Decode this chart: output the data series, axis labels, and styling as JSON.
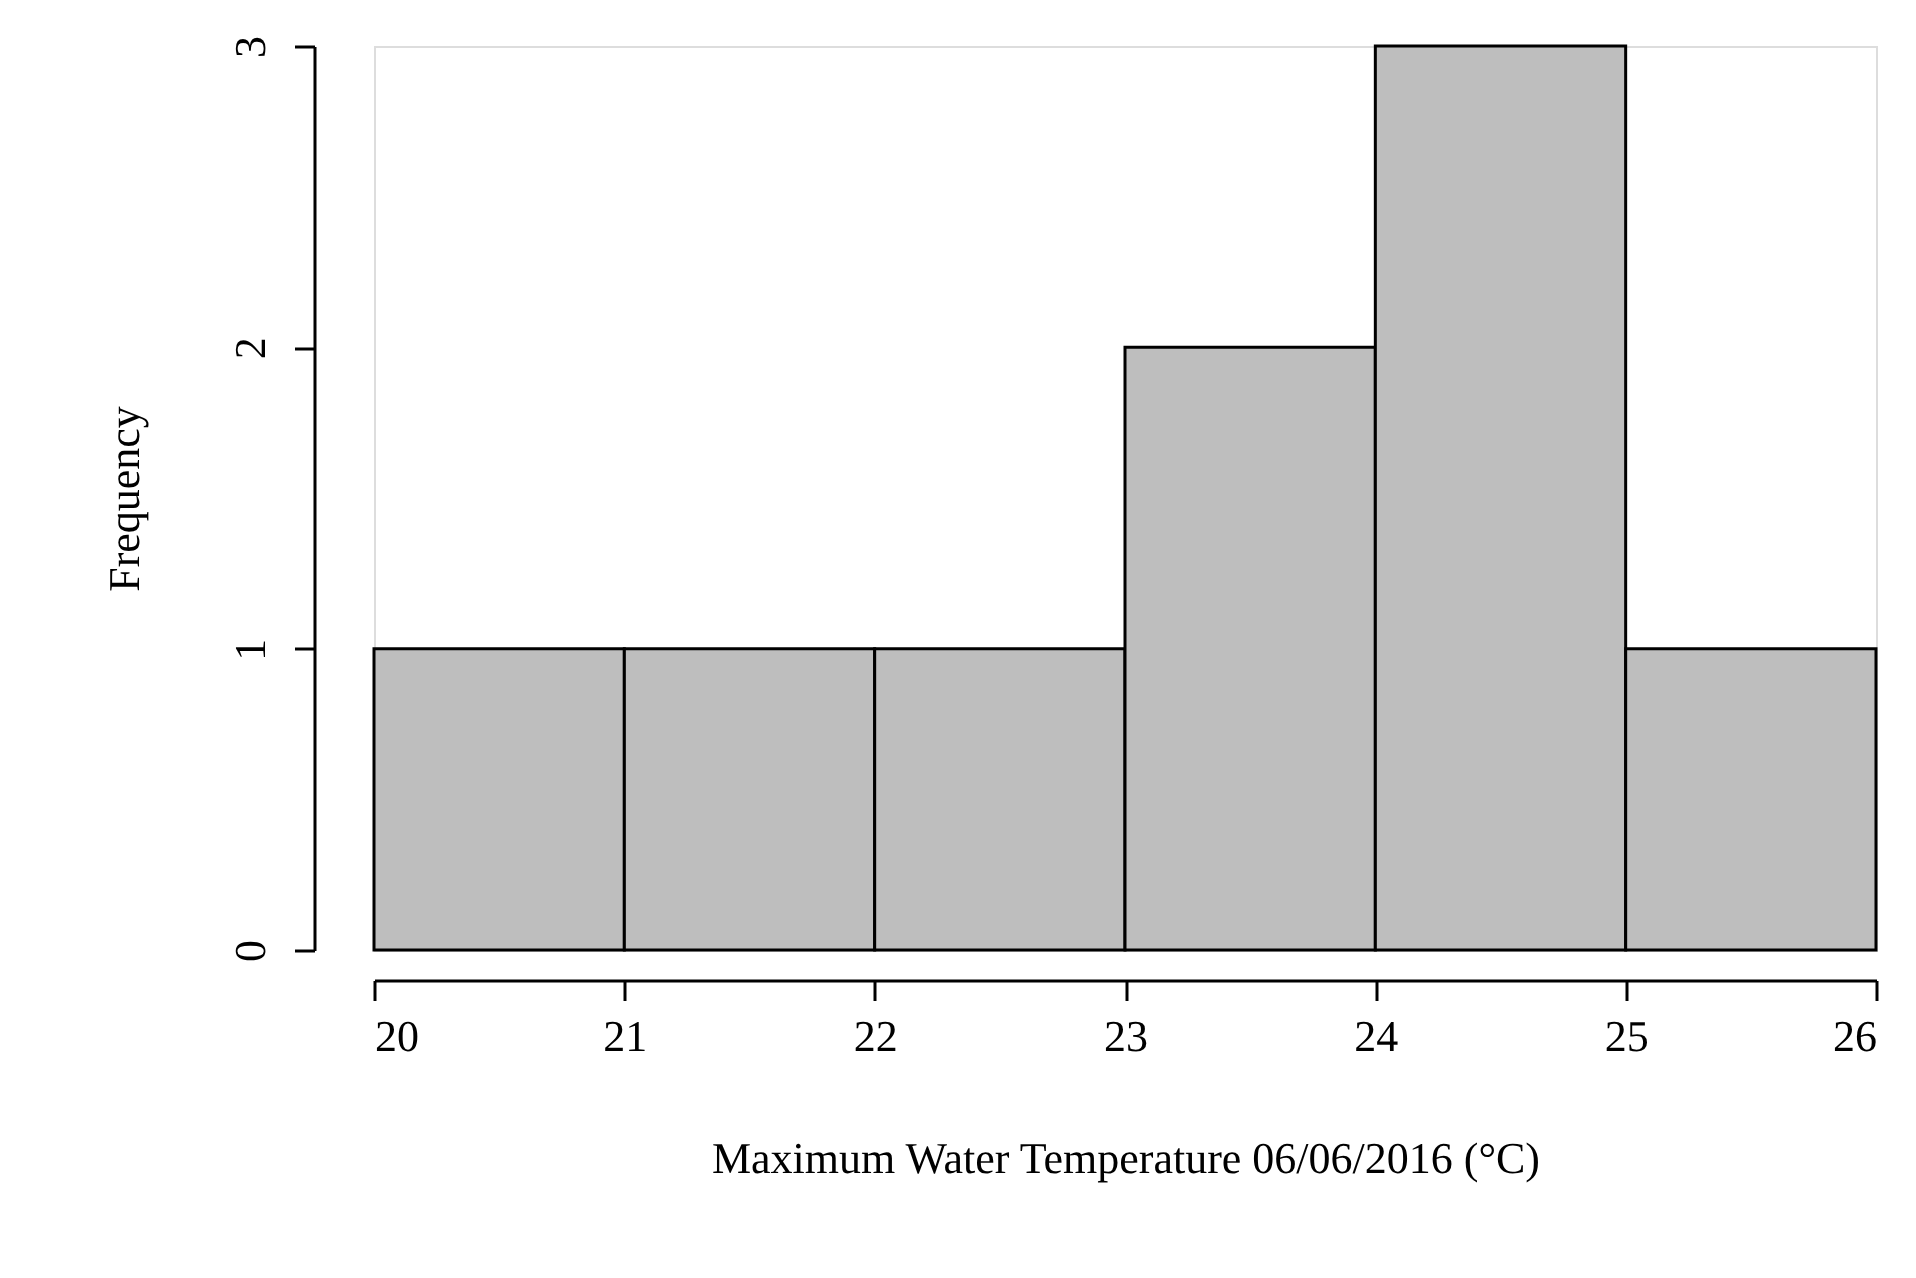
{
  "chart_data": {
    "type": "histogram",
    "xlabel": "Maximum Water Temperature 06/06/2016 (°C)",
    "ylabel": "Frequency",
    "bins": [
      20,
      21,
      22,
      23,
      24,
      25,
      26
    ],
    "values": [
      1,
      1,
      1,
      2,
      3,
      1
    ],
    "color": "#bebebe",
    "xlim": [
      20,
      26
    ],
    "xticks": [
      20,
      21,
      22,
      23,
      24,
      25,
      26
    ],
    "ylim": [
      0,
      3
    ],
    "yticks": [
      0,
      1,
      2,
      3
    ],
    "grid": false
  }
}
